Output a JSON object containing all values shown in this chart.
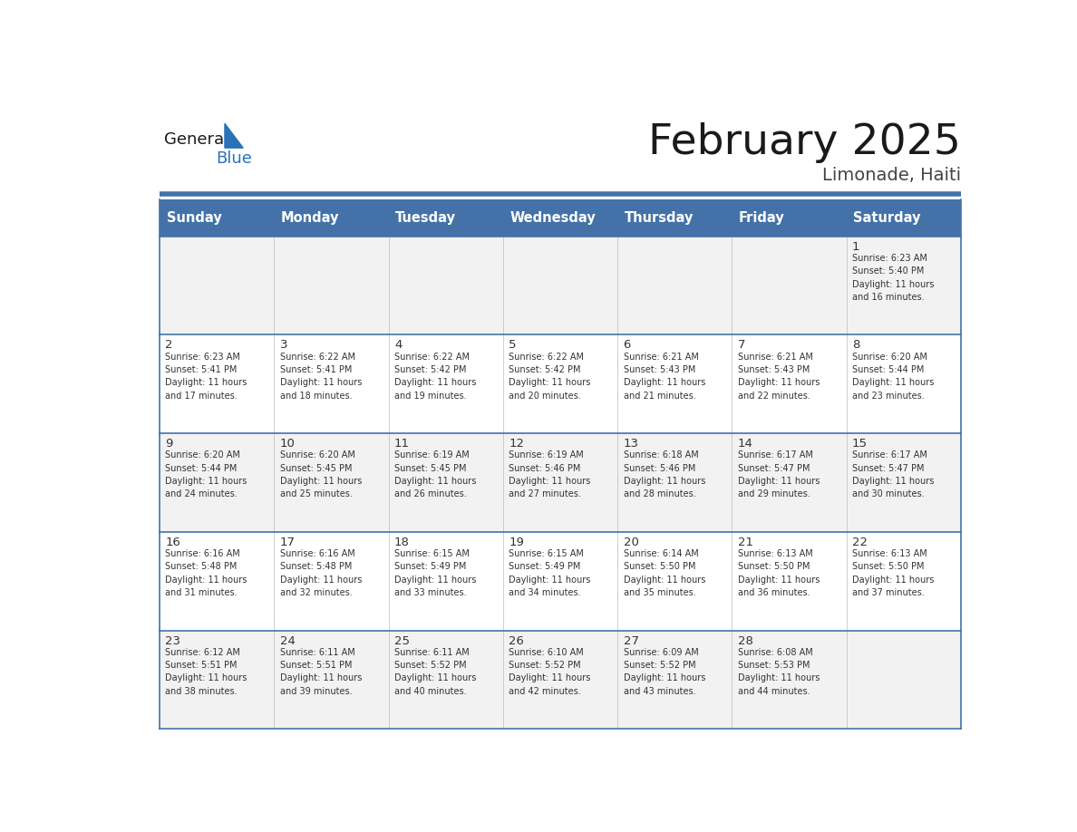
{
  "title": "February 2025",
  "subtitle": "Limonade, Haiti",
  "days_of_week": [
    "Sunday",
    "Monday",
    "Tuesday",
    "Wednesday",
    "Thursday",
    "Friday",
    "Saturday"
  ],
  "header_bg": "#4472a8",
  "header_text_color": "#ffffff",
  "cell_bg_odd": "#f2f2f2",
  "cell_bg_even": "#ffffff",
  "border_color": "#4472a8",
  "sep_line_color": "#4472a8",
  "day_number_color": "#333333",
  "info_text_color": "#333333",
  "title_color": "#1a1a1a",
  "subtitle_color": "#444444",
  "logo_general_color": "#1a1a1a",
  "logo_blue_color": "#2a72b8",
  "weeks": [
    [
      {
        "day": null,
        "info": null
      },
      {
        "day": null,
        "info": null
      },
      {
        "day": null,
        "info": null
      },
      {
        "day": null,
        "info": null
      },
      {
        "day": null,
        "info": null
      },
      {
        "day": null,
        "info": null
      },
      {
        "day": 1,
        "info": "Sunrise: 6:23 AM\nSunset: 5:40 PM\nDaylight: 11 hours\nand 16 minutes."
      }
    ],
    [
      {
        "day": 2,
        "info": "Sunrise: 6:23 AM\nSunset: 5:41 PM\nDaylight: 11 hours\nand 17 minutes."
      },
      {
        "day": 3,
        "info": "Sunrise: 6:22 AM\nSunset: 5:41 PM\nDaylight: 11 hours\nand 18 minutes."
      },
      {
        "day": 4,
        "info": "Sunrise: 6:22 AM\nSunset: 5:42 PM\nDaylight: 11 hours\nand 19 minutes."
      },
      {
        "day": 5,
        "info": "Sunrise: 6:22 AM\nSunset: 5:42 PM\nDaylight: 11 hours\nand 20 minutes."
      },
      {
        "day": 6,
        "info": "Sunrise: 6:21 AM\nSunset: 5:43 PM\nDaylight: 11 hours\nand 21 minutes."
      },
      {
        "day": 7,
        "info": "Sunrise: 6:21 AM\nSunset: 5:43 PM\nDaylight: 11 hours\nand 22 minutes."
      },
      {
        "day": 8,
        "info": "Sunrise: 6:20 AM\nSunset: 5:44 PM\nDaylight: 11 hours\nand 23 minutes."
      }
    ],
    [
      {
        "day": 9,
        "info": "Sunrise: 6:20 AM\nSunset: 5:44 PM\nDaylight: 11 hours\nand 24 minutes."
      },
      {
        "day": 10,
        "info": "Sunrise: 6:20 AM\nSunset: 5:45 PM\nDaylight: 11 hours\nand 25 minutes."
      },
      {
        "day": 11,
        "info": "Sunrise: 6:19 AM\nSunset: 5:45 PM\nDaylight: 11 hours\nand 26 minutes."
      },
      {
        "day": 12,
        "info": "Sunrise: 6:19 AM\nSunset: 5:46 PM\nDaylight: 11 hours\nand 27 minutes."
      },
      {
        "day": 13,
        "info": "Sunrise: 6:18 AM\nSunset: 5:46 PM\nDaylight: 11 hours\nand 28 minutes."
      },
      {
        "day": 14,
        "info": "Sunrise: 6:17 AM\nSunset: 5:47 PM\nDaylight: 11 hours\nand 29 minutes."
      },
      {
        "day": 15,
        "info": "Sunrise: 6:17 AM\nSunset: 5:47 PM\nDaylight: 11 hours\nand 30 minutes."
      }
    ],
    [
      {
        "day": 16,
        "info": "Sunrise: 6:16 AM\nSunset: 5:48 PM\nDaylight: 11 hours\nand 31 minutes."
      },
      {
        "day": 17,
        "info": "Sunrise: 6:16 AM\nSunset: 5:48 PM\nDaylight: 11 hours\nand 32 minutes."
      },
      {
        "day": 18,
        "info": "Sunrise: 6:15 AM\nSunset: 5:49 PM\nDaylight: 11 hours\nand 33 minutes."
      },
      {
        "day": 19,
        "info": "Sunrise: 6:15 AM\nSunset: 5:49 PM\nDaylight: 11 hours\nand 34 minutes."
      },
      {
        "day": 20,
        "info": "Sunrise: 6:14 AM\nSunset: 5:50 PM\nDaylight: 11 hours\nand 35 minutes."
      },
      {
        "day": 21,
        "info": "Sunrise: 6:13 AM\nSunset: 5:50 PM\nDaylight: 11 hours\nand 36 minutes."
      },
      {
        "day": 22,
        "info": "Sunrise: 6:13 AM\nSunset: 5:50 PM\nDaylight: 11 hours\nand 37 minutes."
      }
    ],
    [
      {
        "day": 23,
        "info": "Sunrise: 6:12 AM\nSunset: 5:51 PM\nDaylight: 11 hours\nand 38 minutes."
      },
      {
        "day": 24,
        "info": "Sunrise: 6:11 AM\nSunset: 5:51 PM\nDaylight: 11 hours\nand 39 minutes."
      },
      {
        "day": 25,
        "info": "Sunrise: 6:11 AM\nSunset: 5:52 PM\nDaylight: 11 hours\nand 40 minutes."
      },
      {
        "day": 26,
        "info": "Sunrise: 6:10 AM\nSunset: 5:52 PM\nDaylight: 11 hours\nand 42 minutes."
      },
      {
        "day": 27,
        "info": "Sunrise: 6:09 AM\nSunset: 5:52 PM\nDaylight: 11 hours\nand 43 minutes."
      },
      {
        "day": 28,
        "info": "Sunrise: 6:08 AM\nSunset: 5:53 PM\nDaylight: 11 hours\nand 44 minutes."
      },
      {
        "day": null,
        "info": null
      }
    ]
  ]
}
